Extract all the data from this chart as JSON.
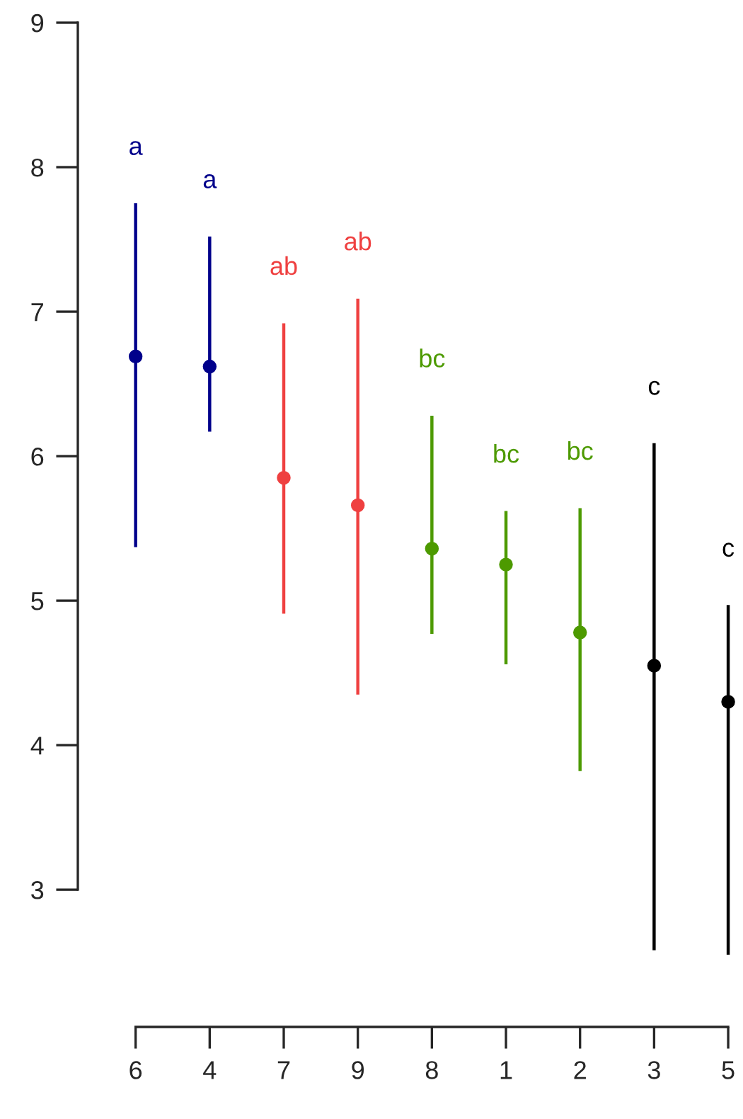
{
  "chart_data": {
    "type": "scatter",
    "categories": [
      "6",
      "4",
      "7",
      "9",
      "8",
      "1",
      "2",
      "3",
      "5"
    ],
    "values": [
      6.69,
      6.62,
      5.85,
      5.66,
      5.36,
      5.25,
      4.78,
      4.55,
      4.3
    ],
    "errors": [
      [
        5.37,
        7.75
      ],
      [
        6.17,
        7.52
      ],
      [
        4.91,
        6.92
      ],
      [
        4.35,
        7.09
      ],
      [
        4.77,
        6.28
      ],
      [
        4.56,
        5.62
      ],
      [
        3.82,
        5.64
      ],
      [
        2.58,
        6.09
      ],
      [
        2.55,
        4.97
      ]
    ],
    "colors": [
      "#00008b",
      "#00008b",
      "#ef4040",
      "#ef4040",
      "#4d9a00",
      "#4d9a00",
      "#4d9a00",
      "#000000",
      "#000000"
    ],
    "marker": "circle",
    "ylim": [
      2.05,
      9
    ],
    "yticks": [
      3,
      4,
      5,
      6,
      7,
      8,
      9
    ],
    "grid": false,
    "legend": false,
    "annotations": [
      "a",
      "a",
      "ab",
      "ab",
      "bc",
      "bc",
      "bc",
      "c",
      "c"
    ]
  }
}
